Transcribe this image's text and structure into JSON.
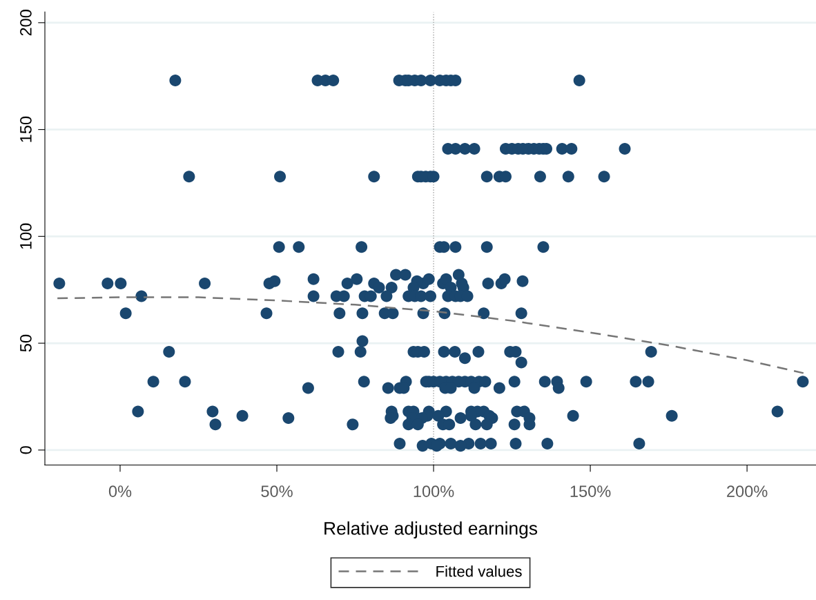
{
  "chart_data": {
    "type": "scatter",
    "xlabel": "Relative adjusted earnings",
    "xlim": [
      -24,
      222
    ],
    "ylim": [
      -7,
      205
    ],
    "xticks": [
      {
        "value": 0,
        "label": "0%"
      },
      {
        "value": 50,
        "label": "50%"
      },
      {
        "value": 100,
        "label": "100%"
      },
      {
        "value": 150,
        "label": "150%"
      },
      {
        "value": 200,
        "label": "200%"
      }
    ],
    "yticks": [
      0,
      50,
      100,
      150,
      200
    ],
    "grid": "y",
    "legend": "bottom",
    "ref_lines": [
      {
        "axis": "x",
        "value": 100,
        "label": null,
        "color": "#a0a0a0",
        "line_style": "dotted"
      }
    ],
    "series": [
      {
        "marker": "circle",
        "color": "#1a476f",
        "x": [
          17.6,
          63,
          65.5,
          68,
          89,
          91,
          92,
          94,
          96,
          99,
          102,
          104,
          105.5,
          107,
          146.5,
          104.6,
          107,
          110,
          113,
          123,
          125,
          127,
          128.5,
          130.3,
          132,
          133.7,
          135,
          136,
          141,
          144,
          161,
          22,
          51,
          81,
          95,
          96,
          97.5,
          99,
          100,
          117,
          121,
          123,
          134,
          143,
          154.4,
          50.7,
          57,
          77,
          102,
          103.3,
          107,
          117,
          135,
          -19.4,
          -4,
          0.2,
          27,
          47.6,
          72.5,
          81,
          96.7,
          103,
          109,
          117.4,
          121.6,
          61.7,
          75.5,
          98.5,
          104,
          122.7,
          49.3,
          94.7,
          128.4,
          88,
          91,
          108,
          82.6,
          86.6,
          93.6,
          105.5,
          109.5,
          6.8,
          61.7,
          69,
          71.4,
          78,
          80,
          85,
          92,
          94,
          96,
          99,
          104.6,
          107,
          108.6,
          110.8,
          1.8,
          46.7,
          70,
          77.3,
          84.4,
          87,
          96.7,
          103.5,
          116,
          128,
          77.3,
          15.6,
          69.6,
          76.7,
          93.6,
          95,
          97,
          103.3,
          106.8,
          114.3,
          124.4,
          126.2,
          169.4,
          110,
          128,
          10.6,
          20.7,
          77.8,
          91.2,
          97.6,
          98.5,
          100,
          102,
          104,
          106,
          108,
          110,
          112,
          114.5,
          116.5,
          125.8,
          135.5,
          139.4,
          148.7,
          164.5,
          168.5,
          217.8,
          60,
          85.5,
          89.2,
          90.5,
          103.7,
          105.5,
          113,
          121,
          139.9,
          5.7,
          29.5,
          86.6,
          92,
          93.6,
          98.5,
          104,
          112,
          114,
          116,
          126.6,
          128.9,
          209.7,
          39,
          87,
          98,
          101.5,
          112,
          117.8,
          144.5,
          176,
          53.7,
          86.3,
          93.2,
          96.3,
          108.6,
          118.7,
          130.6,
          30.4,
          74.2,
          92,
          95,
          103,
          105,
          113.4,
          117,
          125.8,
          130.6,
          89.2,
          99.3,
          102,
          105.5,
          111.2,
          115,
          118.3,
          126.2,
          136.3,
          165.6,
          96.5,
          101,
          108.6
        ],
        "values": [
          173,
          173,
          173,
          173,
          173,
          173,
          173,
          173,
          173,
          173,
          173,
          173,
          173,
          173,
          173,
          141,
          141,
          141,
          141,
          141,
          141,
          141,
          141,
          141,
          141,
          141,
          141,
          141,
          141,
          141,
          141,
          128,
          128,
          128,
          128,
          128,
          128,
          128,
          128,
          128,
          128,
          128,
          128,
          128,
          128,
          95,
          95,
          95,
          95,
          95,
          95,
          95,
          95,
          78,
          78,
          78,
          78,
          78,
          78,
          78,
          78,
          78,
          78,
          78,
          78,
          80,
          80,
          80,
          80,
          80,
          79,
          79,
          79,
          82,
          82,
          82,
          76,
          76,
          76,
          76,
          76,
          72,
          72,
          72,
          72,
          72,
          72,
          72,
          72,
          72,
          72,
          72,
          72,
          72,
          72,
          72,
          64,
          64,
          64,
          64,
          64,
          64,
          64,
          64,
          64,
          64,
          51,
          46,
          46,
          46,
          46,
          46,
          46,
          46,
          46,
          46,
          46,
          46,
          46,
          43,
          41,
          32,
          32,
          32,
          32,
          32,
          32,
          32,
          32,
          32,
          32,
          32,
          32,
          32,
          32,
          32,
          32,
          32,
          32,
          32,
          32,
          32,
          32,
          29,
          29,
          29,
          29,
          29,
          29,
          29,
          29,
          29,
          18,
          18,
          18,
          18,
          18,
          18,
          18,
          18,
          18,
          18,
          18,
          18,
          18,
          16,
          16,
          16,
          16,
          16,
          16,
          16,
          16,
          15,
          15,
          15,
          15,
          15,
          15,
          15,
          12,
          12,
          12,
          12,
          12,
          12,
          12,
          12,
          12,
          12,
          3,
          3,
          3,
          3,
          3,
          3,
          3,
          3,
          3,
          3,
          2,
          2,
          2
        ]
      },
      {
        "type": "line",
        "name": "Fitted values",
        "color": "#767676",
        "line_style": "dashed",
        "x": [
          -20,
          0,
          25,
          50,
          75,
          100,
          125,
          150,
          175,
          200,
          218
        ],
        "values": [
          71,
          71.5,
          71.5,
          70,
          68,
          65,
          60.5,
          55,
          49,
          42,
          36
        ]
      }
    ]
  }
}
